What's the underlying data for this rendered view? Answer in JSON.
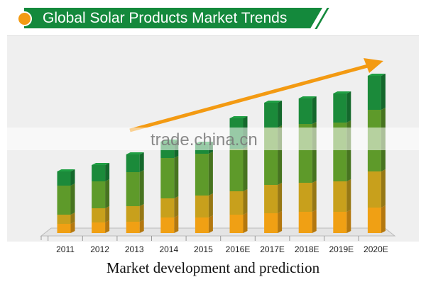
{
  "header": {
    "title": "Global Solar Products Market Trends"
  },
  "watermark": "trade.china.cn",
  "chart_data": {
    "type": "bar",
    "stacked": true,
    "title": "Global Solar Products Market Trends",
    "xlabel": "Market development and prediction",
    "ylabel": "",
    "categories": [
      "2011",
      "2012",
      "2013",
      "2014",
      "2015",
      "2016E",
      "2017E",
      "2018E",
      "2019E",
      "2020E"
    ],
    "series": [
      {
        "values": [
          13,
          15,
          16,
          22,
          22,
          26,
          28,
          30,
          30,
          36
        ],
        "color": "#f0a014"
      },
      {
        "values": [
          13,
          20,
          22,
          27,
          31,
          33,
          40,
          41,
          43,
          51
        ],
        "color": "#c8a01c"
      },
      {
        "values": [
          41,
          38,
          48,
          57,
          59,
          60,
          81,
          83,
          83,
          87
        ],
        "color": "#5e9a2a"
      },
      {
        "values": [
          20,
          23,
          25,
          23,
          14,
          43,
          35,
          36,
          41,
          48
        ],
        "color": "#1b8a3a"
      }
    ],
    "ylim": [
      0,
      230
    ],
    "grid": false,
    "legend": "none",
    "trend_arrow_color": "#f39a12"
  }
}
